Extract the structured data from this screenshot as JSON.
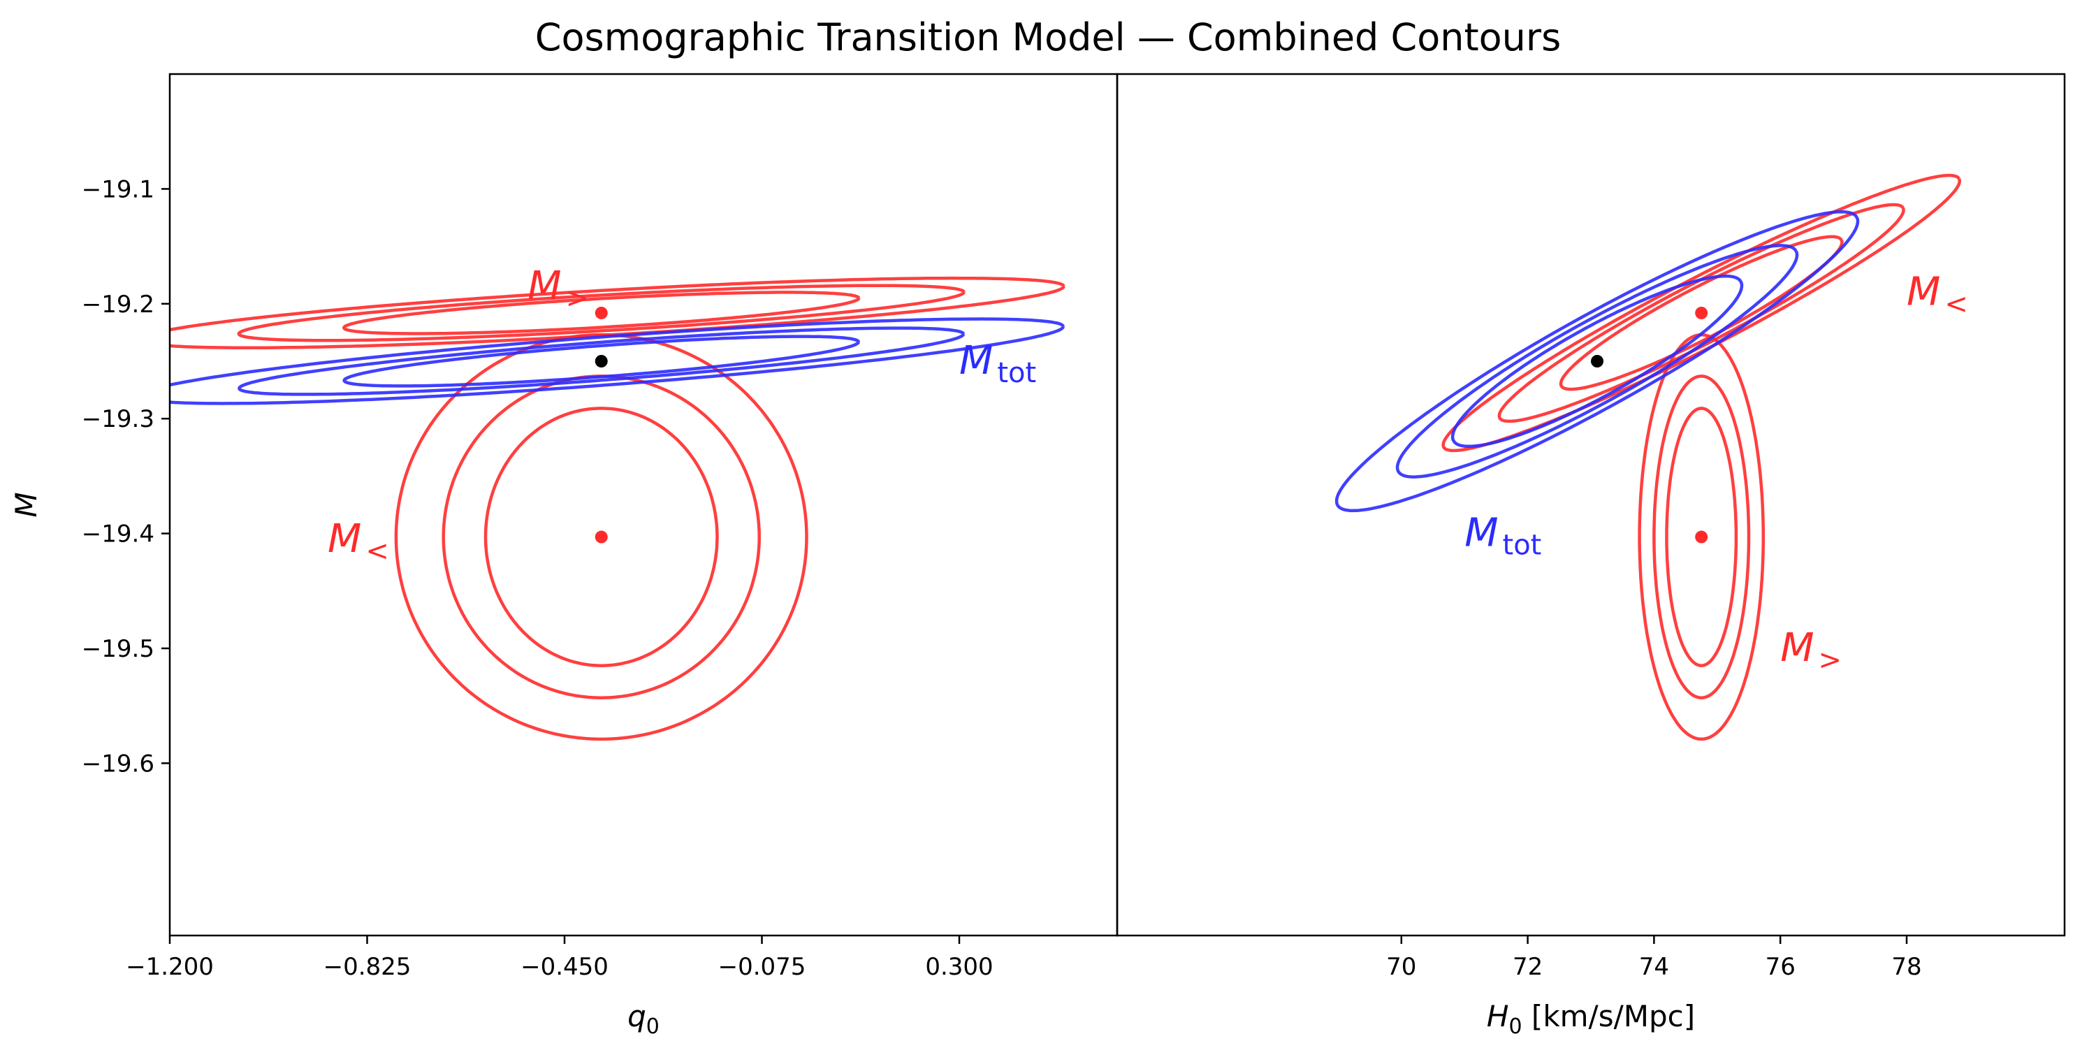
{
  "figure": {
    "title": "Cosmographic Transition Model — Combined Contours"
  },
  "colors": {
    "M_less": "#ff2a2a",
    "M_greater": "#ff2a2a",
    "M_tot": "#2b2bff",
    "best_fit": "#000000"
  },
  "chart_data": [
    {
      "type": "scatter",
      "panel": "left",
      "xlabel_base": "q",
      "xlabel_sub": "0",
      "xlabel_suffix": "",
      "ylabel": "M",
      "xlim": [
        -1.2,
        0.6
      ],
      "ylim": [
        -19.75,
        -19.0
      ],
      "xticks": [
        -1.2,
        -0.825,
        -0.45,
        -0.075,
        0.3
      ],
      "xtick_labels": [
        "−1.200",
        "−0.825",
        "−0.450",
        "−0.075",
        "0.300"
      ],
      "yticks": [
        -19.1,
        -19.2,
        -19.3,
        -19.4,
        -19.5,
        -19.6
      ],
      "ytick_labels": [
        "−19.1",
        "−19.2",
        "−19.3",
        "−19.4",
        "−19.5",
        "−19.6"
      ],
      "series": [
        {
          "name": "M<",
          "label_main": "M",
          "label_sub": "<",
          "label_at": [
            -0.9,
            -19.405
          ],
          "color_key": "M_less",
          "center": [
            -0.38,
            -19.403
          ],
          "contours": [
            {
              "rx": 0.22,
              "ry": 0.112,
              "angle_deg": 0
            },
            {
              "rx": 0.3,
              "ry": 0.14,
              "angle_deg": 0
            },
            {
              "rx": 0.39,
              "ry": 0.176,
              "angle_deg": 0
            }
          ]
        },
        {
          "name": "M>",
          "label_main": "M",
          "label_sub": ">",
          "label_at": [
            -0.52,
            -19.185
          ],
          "color_key": "M_greater",
          "center": [
            -0.38,
            -19.208
          ],
          "contours": [
            {
              "rx": 0.49,
              "ry": 0.0125,
              "angle_deg": 3.3
            },
            {
              "rx": 0.69,
              "ry": 0.0155,
              "angle_deg": 3.3
            },
            {
              "rx": 0.88,
              "ry": 0.0195,
              "angle_deg": 3.3
            }
          ]
        },
        {
          "name": "Mtot",
          "label_main": "M",
          "label_sub": "tot",
          "label_at": [
            0.3,
            -19.25
          ],
          "color_key": "M_tot",
          "center": [
            -0.38,
            -19.25
          ],
          "contours": [
            {
              "rx": 0.49,
              "ry": 0.0135,
              "angle_deg": 4.3
            },
            {
              "rx": 0.69,
              "ry": 0.0165,
              "angle_deg": 4.3
            },
            {
              "rx": 0.88,
              "ry": 0.021,
              "angle_deg": 4.3
            }
          ]
        }
      ],
      "points": [
        {
          "x": -0.38,
          "y": -19.403,
          "color_key": "M_less"
        },
        {
          "x": -0.38,
          "y": -19.208,
          "color_key": "M_greater"
        },
        {
          "x": -0.38,
          "y": -19.25,
          "color_key": "best_fit"
        }
      ]
    },
    {
      "type": "scatter",
      "panel": "right",
      "xlabel_base": "H",
      "xlabel_sub": "0",
      "xlabel_suffix": " [km/s/Mpc]",
      "ylabel": "",
      "xlim": [
        65.5,
        80.5
      ],
      "ylim": [
        -19.75,
        -19.0
      ],
      "xticks": [
        70,
        72,
        74,
        76,
        78
      ],
      "xtick_labels": [
        "70",
        "72",
        "74",
        "76",
        "78"
      ],
      "yticks": [],
      "ytick_labels": [],
      "series": [
        {
          "name": "M<",
          "label_main": "M",
          "label_sub": "<",
          "label_at": [
            78.0,
            -19.19
          ],
          "color_key": "M_less",
          "center": [
            74.75,
            -19.208
          ],
          "contours": [
            {
              "rx": 2.5,
              "ry": 0.022,
              "angle_deg": 27.5
            },
            {
              "rx": 3.6,
              "ry": 0.026,
              "angle_deg": 27.5
            },
            {
              "rx": 4.6,
              "ry": 0.03,
              "angle_deg": 27.5
            }
          ]
        },
        {
          "name": "M>",
          "label_main": "M",
          "label_sub": ">",
          "label_at": [
            76.0,
            -19.5
          ],
          "color_key": "M_greater",
          "center": [
            74.75,
            -19.403
          ],
          "contours": [
            {
              "rx": 0.55,
              "ry": 0.112,
              "angle_deg": 0
            },
            {
              "rx": 0.75,
              "ry": 0.14,
              "angle_deg": 0
            },
            {
              "rx": 0.98,
              "ry": 0.176,
              "angle_deg": 0
            }
          ]
        },
        {
          "name": "Mtot",
          "label_main": "M",
          "label_sub": "tot",
          "label_at": [
            71.0,
            -19.4
          ],
          "color_key": "M_tot",
          "center": [
            73.1,
            -19.25
          ],
          "contours": [
            {
              "rx": 2.6,
              "ry": 0.03,
              "angle_deg": 29
            },
            {
              "rx": 3.6,
              "ry": 0.035,
              "angle_deg": 29
            },
            {
              "rx": 4.7,
              "ry": 0.04,
              "angle_deg": 29
            }
          ]
        }
      ],
      "points": [
        {
          "x": 74.75,
          "y": -19.403,
          "color_key": "M_less"
        },
        {
          "x": 74.75,
          "y": -19.208,
          "color_key": "M_greater"
        },
        {
          "x": 73.1,
          "y": -19.25,
          "color_key": "best_fit"
        }
      ]
    }
  ]
}
